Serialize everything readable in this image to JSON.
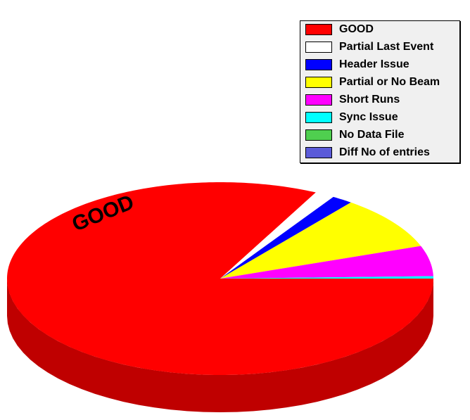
{
  "chart_data": {
    "type": "pie",
    "style": "3d",
    "slices": [
      {
        "label": "GOOD",
        "value": 82.4,
        "color": "#ff0000"
      },
      {
        "label": "Partial Last Event",
        "value": 1.5,
        "color": "#ffffff"
      },
      {
        "label": "Header Issue",
        "value": 1.6,
        "color": "#0000ff"
      },
      {
        "label": "Partial or No Beam",
        "value": 9.0,
        "color": "#ffff00"
      },
      {
        "label": "Short Runs",
        "value": 5.1,
        "color": "#ff00ff"
      },
      {
        "label": "Sync Issue",
        "value": 0.4,
        "color": "#00ffff"
      },
      {
        "label": "No Data File",
        "value": 0.0,
        "color": "#4fcf4f"
      },
      {
        "label": "Diff No of entries",
        "value": 0.0,
        "color": "#5b5bd9"
      }
    ],
    "pie_label": "GOOD",
    "legend_position": "top-right"
  }
}
